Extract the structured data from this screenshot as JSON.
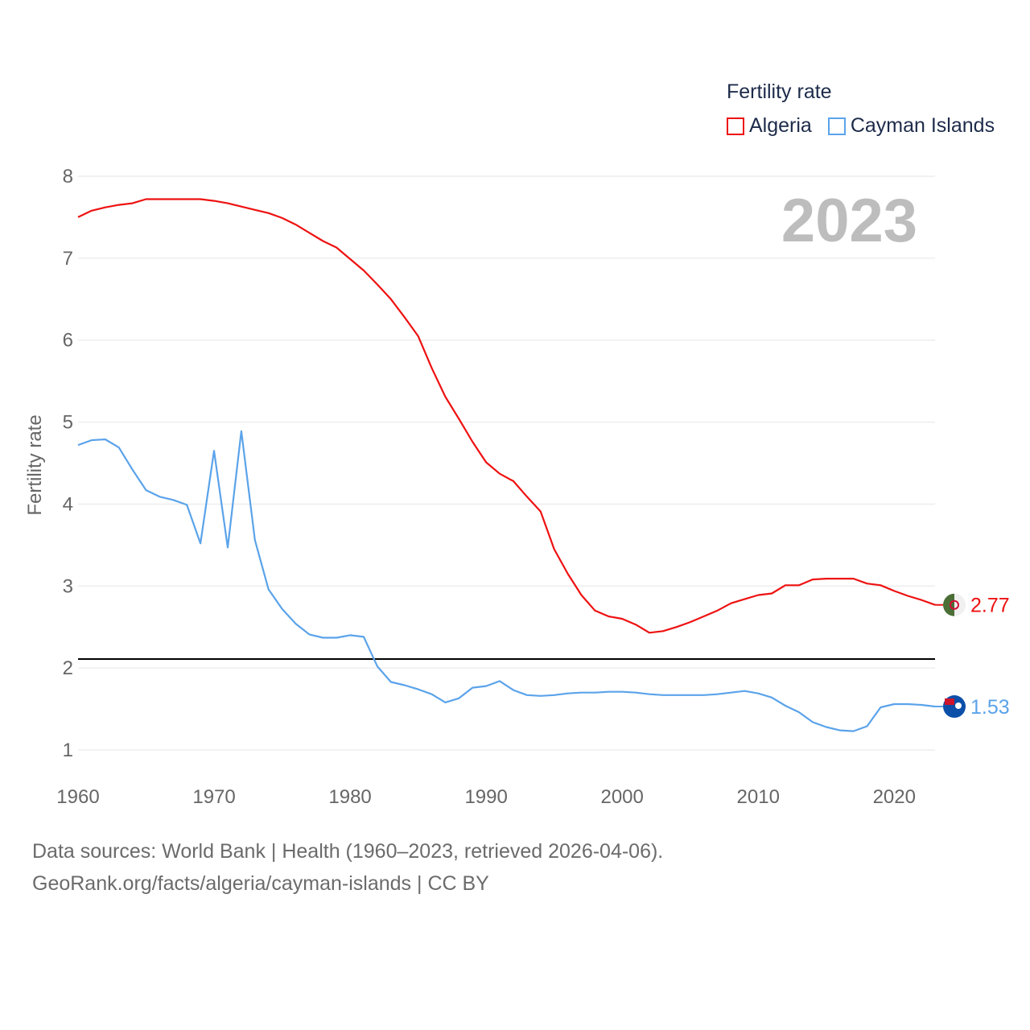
{
  "chart_data": {
    "type": "line",
    "title": "Fertility rate",
    "ylabel": "Fertility rate",
    "xlabel": "",
    "year_label": "2023",
    "xlim": [
      1960,
      2023
    ],
    "ylim": [
      1,
      8
    ],
    "xticks": [
      "1960",
      "1970",
      "1980",
      "1990",
      "2000",
      "2010",
      "2020"
    ],
    "yticks": [
      "1",
      "2",
      "3",
      "4",
      "5",
      "6",
      "7",
      "8"
    ],
    "grid": true,
    "legend_position": "top-right",
    "reference_line": 2.11,
    "x_start": 1960,
    "series": [
      {
        "name": "Algeria",
        "color": "#ee1111",
        "end_label": "2.77",
        "flag_colors": [
          "#4a6e35",
          "#f0f0f0",
          "#d21034"
        ],
        "values": [
          7.5,
          7.58,
          7.62,
          7.65,
          7.67,
          7.72,
          7.72,
          7.72,
          7.72,
          7.72,
          7.7,
          7.67,
          7.63,
          7.59,
          7.55,
          7.49,
          7.41,
          7.31,
          7.21,
          7.13,
          6.99,
          6.85,
          6.68,
          6.5,
          6.28,
          6.05,
          5.66,
          5.31,
          5.04,
          4.76,
          4.51,
          4.37,
          4.28,
          4.09,
          3.91,
          3.45,
          3.15,
          2.89,
          2.7,
          2.63,
          2.6,
          2.53,
          2.43,
          2.45,
          2.5,
          2.56,
          2.63,
          2.7,
          2.79,
          2.84,
          2.89,
          2.91,
          3.01,
          3.01,
          3.08,
          3.09,
          3.09,
          3.09,
          3.03,
          3.01,
          2.94,
          2.88,
          2.83,
          2.77
        ]
      },
      {
        "name": "Cayman Islands",
        "color": "#5ba3ea",
        "end_label": "1.53",
        "flag_colors": [
          "#0b4fa8",
          "#cf142b",
          "#ffffff"
        ],
        "values": [
          4.72,
          4.78,
          4.79,
          4.69,
          4.42,
          4.17,
          4.09,
          4.05,
          3.99,
          3.52,
          4.65,
          3.47,
          4.89,
          3.56,
          2.96,
          2.72,
          2.54,
          2.41,
          2.37,
          2.37,
          2.4,
          2.38,
          2.02,
          1.83,
          1.79,
          1.74,
          1.68,
          1.58,
          1.63,
          1.76,
          1.78,
          1.84,
          1.73,
          1.67,
          1.66,
          1.67,
          1.69,
          1.7,
          1.7,
          1.71,
          1.71,
          1.7,
          1.68,
          1.67,
          1.67,
          1.67,
          1.67,
          1.68,
          1.7,
          1.72,
          1.69,
          1.64,
          1.54,
          1.46,
          1.34,
          1.28,
          1.24,
          1.23,
          1.29,
          1.52,
          1.56,
          1.56,
          1.55,
          1.53
        ]
      }
    ]
  },
  "footer": {
    "line1": "Data sources: World Bank | Health (1960–2023, retrieved 2026-04-06).",
    "line2": "GeoRank.org/facts/algeria/cayman-islands | CC BY"
  }
}
